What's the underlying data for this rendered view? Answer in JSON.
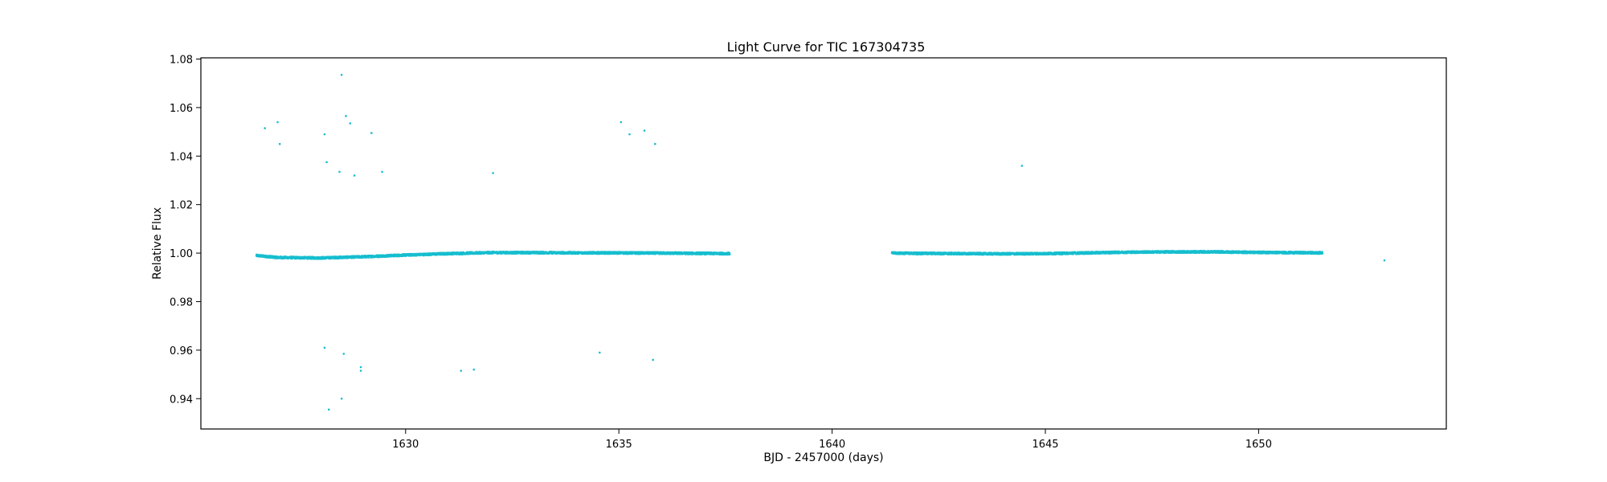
{
  "chart_data": {
    "type": "scatter",
    "title": "Light Curve for TIC 167304735",
    "xlabel": "BJD - 2457000 (days)",
    "ylabel": "Relative Flux",
    "xlim": [
      1625.2,
      1654.4
    ],
    "ylim": [
      0.9275,
      1.0805
    ],
    "x_ticks": [
      1630,
      1635,
      1640,
      1645,
      1650
    ],
    "x_tick_labels": [
      "1630",
      "1635",
      "1640",
      "1645",
      "1650"
    ],
    "y_ticks": [
      0.94,
      0.96,
      0.98,
      1.0,
      1.02,
      1.04,
      1.06,
      1.08
    ],
    "y_tick_labels": [
      "0.94",
      "0.96",
      "0.98",
      "1.00",
      "1.02",
      "1.04",
      "1.06",
      "1.08"
    ],
    "grid": false,
    "marker_color": "#17becf",
    "baseline_segments": [
      {
        "x": [
          1626.5,
          1627.0,
          1628.0,
          1629.0,
          1630.0,
          1631.0,
          1632.0,
          1633.0,
          1634.0,
          1635.0,
          1636.0,
          1637.6
        ],
        "y": [
          0.999,
          0.9982,
          0.998,
          0.9985,
          0.9992,
          0.9998,
          1.0002,
          1.0002,
          1.0001,
          1.0001,
          1.0,
          0.9998
        ]
      },
      {
        "x": [
          1641.4,
          1642.0,
          1643.0,
          1644.0,
          1645.0,
          1646.0,
          1647.0,
          1648.0,
          1649.0,
          1650.0,
          1651.5
        ],
        "y": [
          1.0,
          0.9999,
          0.9998,
          0.9997,
          0.9998,
          1.0001,
          1.0004,
          1.0005,
          1.0005,
          1.0003,
          1.0001
        ]
      }
    ],
    "outliers": {
      "x": [
        1626.7,
        1627.0,
        1627.05,
        1628.1,
        1628.15,
        1628.45,
        1628.5,
        1628.6,
        1628.7,
        1628.8,
        1629.2,
        1629.45,
        1632.05,
        1635.05,
        1635.25,
        1635.6,
        1635.85,
        1644.45,
        1652.95,
        1628.1,
        1628.55,
        1628.95,
        1628.95,
        1631.3,
        1631.6,
        1634.55,
        1635.8,
        1628.5,
        1628.2
      ],
      "y": [
        1.0515,
        1.054,
        1.045,
        1.049,
        1.0375,
        1.0335,
        1.0735,
        1.0565,
        1.0535,
        1.032,
        1.0495,
        1.0335,
        1.033,
        1.054,
        1.049,
        1.0505,
        1.045,
        1.036,
        0.997,
        0.961,
        0.9585,
        0.953,
        0.9515,
        0.9515,
        0.952,
        0.959,
        0.956,
        0.94,
        0.9355
      ]
    }
  }
}
